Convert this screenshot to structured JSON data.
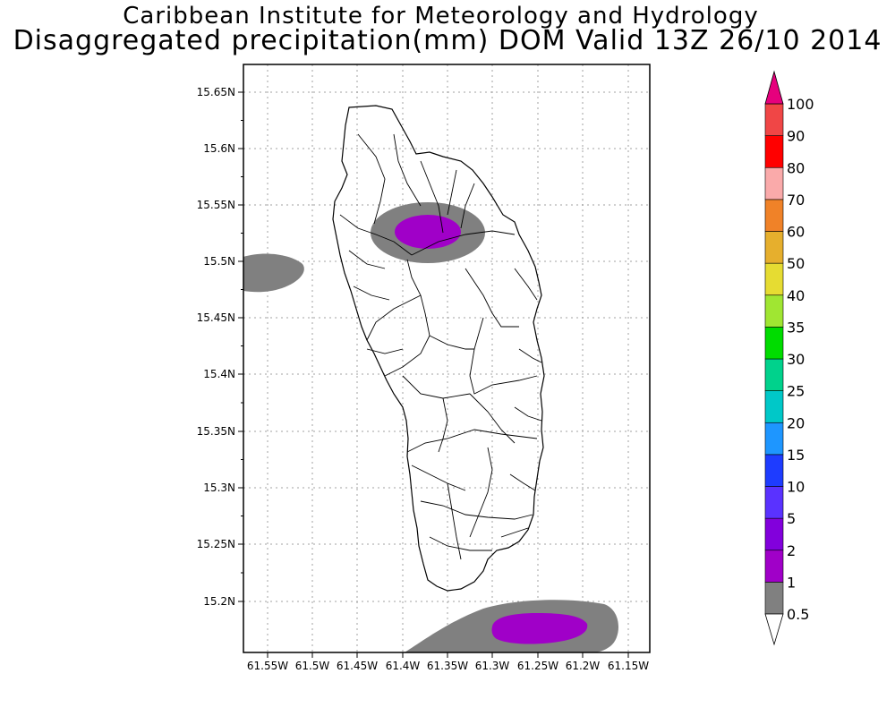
{
  "header": {
    "title": "Caribbean Institute for Meteorology and Hydrology",
    "subtitle": "Disaggregated precipitation(mm) DOM Valid 13Z 26/10 2014"
  },
  "axes": {
    "lat_ticks": [
      "15.65N",
      "15.6N",
      "15.55N",
      "15.5N",
      "15.45N",
      "15.4N",
      "15.35N",
      "15.3N",
      "15.25N",
      "15.2N"
    ],
    "lon_ticks": [
      "61.55W",
      "61.5W",
      "61.45W",
      "61.4W",
      "61.35W",
      "61.3W",
      "61.25W",
      "61.2W",
      "61.15W"
    ]
  },
  "colorbar": {
    "labels": [
      "0.5",
      "1",
      "2",
      "5",
      "10",
      "15",
      "20",
      "25",
      "30",
      "35",
      "40",
      "50",
      "60",
      "70",
      "80",
      "90",
      "100"
    ],
    "colors": [
      "#808080",
      "#a000c8",
      "#8200dc",
      "#5a32ff",
      "#1e3cff",
      "#1e96ff",
      "#00c8c8",
      "#00d28c",
      "#00dc00",
      "#a0e632",
      "#e6dc32",
      "#e6af2d",
      "#f08228",
      "#faaaaa",
      "#ff0000",
      "#f04646",
      "#e6007d"
    ],
    "lower_arrow_color": "#ffffff",
    "upper_arrow_color": "#e6007d"
  },
  "precip_areas": [
    {
      "name": "north-central",
      "level_mm": 0.5,
      "color": "#808080"
    },
    {
      "name": "north-central-core",
      "level_mm": 1,
      "color": "#a000c8"
    },
    {
      "name": "west-offshore",
      "level_mm": 0.5,
      "color": "#808080"
    },
    {
      "name": "south-offshore",
      "level_mm": 0.5,
      "color": "#808080"
    },
    {
      "name": "south-offshore-core",
      "level_mm": 1,
      "color": "#a000c8"
    }
  ]
}
